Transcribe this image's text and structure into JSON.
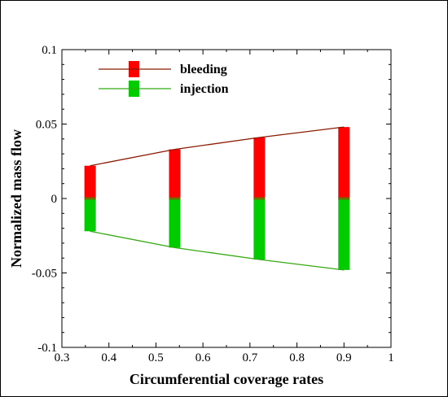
{
  "chart_data": {
    "type": "bar",
    "title": "",
    "xlabel": "Circumferential coverage rates",
    "ylabel": "Normalized mass flow",
    "xlim": [
      0.3,
      1.0
    ],
    "ylim": [
      -0.1,
      0.1
    ],
    "xticks": [
      "0.3",
      "0.4",
      "0.5",
      "0.6",
      "0.7",
      "0.8",
      "0.9",
      "1"
    ],
    "yticks": [
      "-0.1",
      "-0.05",
      "0",
      "0.05",
      "0.1"
    ],
    "x": [
      0.36,
      0.54,
      0.72,
      0.9
    ],
    "series": [
      {
        "name": "bleeding",
        "values": [
          0.022,
          0.033,
          0.041,
          0.048
        ],
        "color": "#ff0000",
        "line_color": "#8b1a00"
      },
      {
        "name": "injection",
        "values": [
          -0.022,
          -0.033,
          -0.041,
          -0.048
        ],
        "color": "#00cc00",
        "line_color": "#33aa11"
      }
    ],
    "zero_band_color": "#6b6b00",
    "grid": false,
    "legend_position": "top-left"
  }
}
